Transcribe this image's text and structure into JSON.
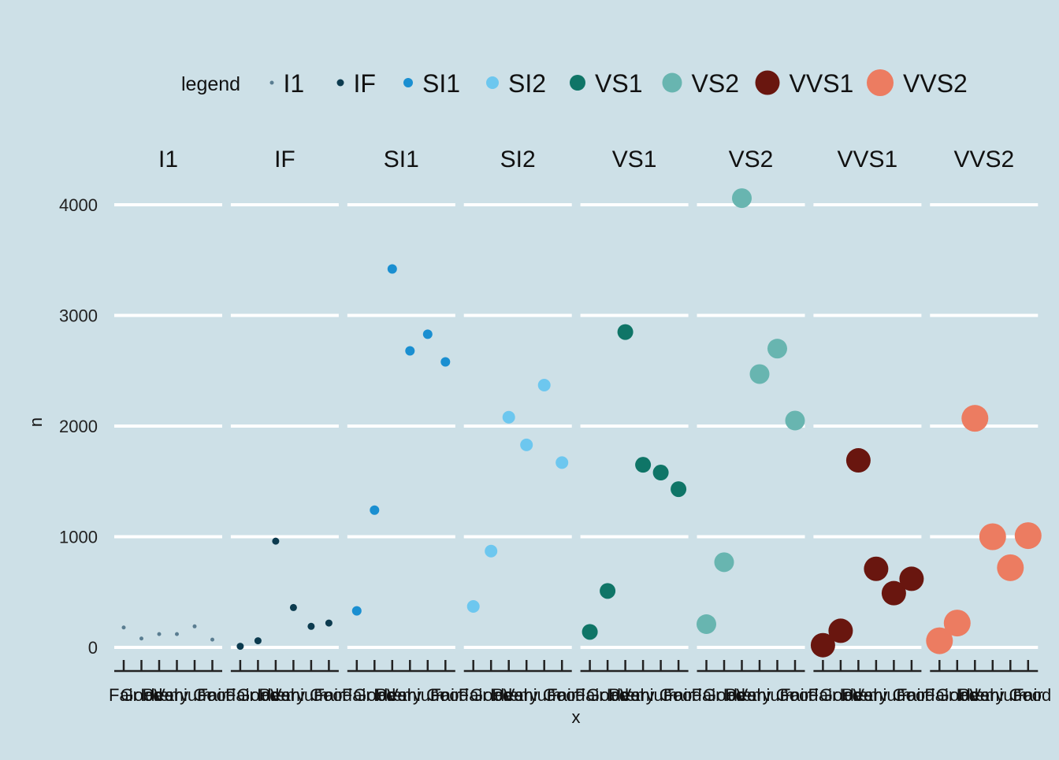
{
  "chart_data": {
    "type": "scatter",
    "facet_by": "clarity",
    "xlabel": "x",
    "ylabel": "n",
    "x_categories": [
      "Fair",
      "Good",
      "Ideal",
      "Premium",
      "Very Good",
      "Fair"
    ],
    "ylim": [
      0,
      4000
    ],
    "yticks": [
      0,
      1000,
      2000,
      3000,
      4000
    ],
    "grid": "horizontal",
    "legend": {
      "title": "legend",
      "position": "top"
    },
    "series": [
      {
        "name": "I1",
        "color": "#5a7d91",
        "values": [
          180,
          80,
          120,
          120,
          190,
          70
        ]
      },
      {
        "name": "IF",
        "color": "#0c3b4f",
        "values": [
          10,
          60,
          960,
          360,
          190,
          220
        ]
      },
      {
        "name": "SI1",
        "color": "#1a8fd1",
        "values": [
          330,
          1240,
          3420,
          2680,
          2830,
          2580
        ]
      },
      {
        "name": "SI2",
        "color": "#6dc7ef",
        "values": [
          370,
          870,
          2080,
          1830,
          2370,
          1670
        ]
      },
      {
        "name": "VS1",
        "color": "#0f7567",
        "values": [
          140,
          510,
          2850,
          1650,
          1580,
          1430
        ]
      },
      {
        "name": "VS2",
        "color": "#68b5b0",
        "values": [
          210,
          770,
          4060,
          2470,
          2700,
          2050
        ]
      },
      {
        "name": "VVS1",
        "color": "#69160f",
        "values": [
          20,
          150,
          1690,
          710,
          490,
          620
        ]
      },
      {
        "name": "VVS2",
        "color": "#ec7c61",
        "values": [
          60,
          220,
          2070,
          1000,
          720,
          1010
        ]
      }
    ]
  }
}
